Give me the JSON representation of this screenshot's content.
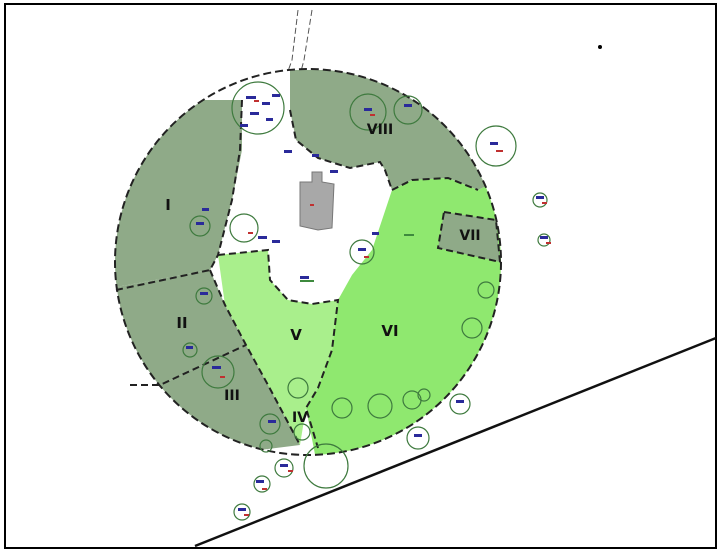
{
  "zones": {
    "i": "I",
    "ii": "II",
    "iii": "III",
    "iv": "IV",
    "v": "V",
    "vi": "VI",
    "vii": "VII",
    "viii": "VIII"
  },
  "colors": {
    "dark_zone": "#8faa88",
    "light_green": "#a9ef8c",
    "bright_green": "#8fe86f",
    "building": "#a8a8a8",
    "boundary": "#222222",
    "tree_ring": "#3e7a3e",
    "annotation": "#2a2a9a",
    "border": "#000000"
  }
}
